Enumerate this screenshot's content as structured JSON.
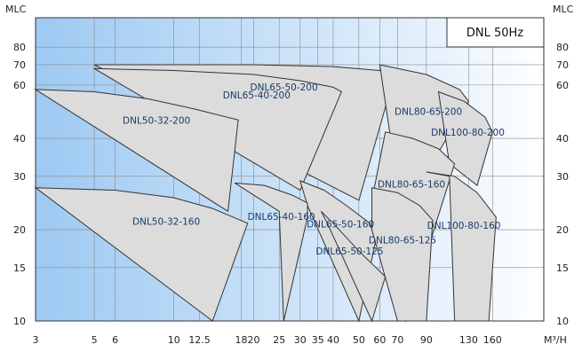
{
  "chart_data": {
    "type": "area",
    "title": "DNL 50Hz",
    "xlabel": "M³/H",
    "ylabel": "MLC",
    "x_scale": "log",
    "y_scale": "log",
    "xlim": [
      3,
      250
    ],
    "ylim": [
      10,
      100
    ],
    "x_ticks": [
      {
        "value": 3,
        "label": "3"
      },
      {
        "value": 5,
        "label": "5"
      },
      {
        "value": 6,
        "label": "6"
      },
      {
        "value": 10,
        "label": "10"
      },
      {
        "value": 12.5,
        "label": "12.5"
      },
      {
        "value": 18,
        "label": "18"
      },
      {
        "value": 20,
        "label": "20"
      },
      {
        "value": 25,
        "label": "25"
      },
      {
        "value": 30,
        "label": "30"
      },
      {
        "value": 35,
        "label": "35"
      },
      {
        "value": 40,
        "label": "40"
      },
      {
        "value": 50,
        "label": "50"
      },
      {
        "value": 60,
        "label": "60"
      },
      {
        "value": 70,
        "label": "70"
      },
      {
        "value": 90,
        "label": "90"
      },
      {
        "value": 130,
        "label": "130"
      },
      {
        "value": 160,
        "label": "160"
      }
    ],
    "x_tick_label_groups": [
      {
        "text": "1820",
        "values": [
          18,
          20
        ]
      }
    ],
    "y_ticks": [
      10,
      15,
      20,
      30,
      40,
      60,
      70,
      80
    ],
    "grid": true,
    "series": [
      {
        "name": "DNL50-32-200",
        "x": [
          3,
          5,
          8,
          12,
          17.5,
          16
        ],
        "y": [
          58,
          57,
          54,
          50,
          46,
          23
        ]
      },
      {
        "name": "DNL50-32-160",
        "x": [
          3,
          6,
          10,
          14,
          19,
          14
        ],
        "y": [
          27.5,
          27,
          25.5,
          23.5,
          21,
          10
        ]
      },
      {
        "name": "DNL65-40-200",
        "x": [
          5,
          10,
          20,
          30,
          40,
          43,
          30
        ],
        "y": [
          68,
          67,
          65,
          62,
          59,
          57,
          27
        ]
      },
      {
        "name": "DNL65-40-160",
        "x": [
          17,
          22,
          28,
          32,
          32,
          26,
          25
        ],
        "y": [
          28.5,
          28,
          26,
          24.5,
          22,
          10,
          23
        ]
      },
      {
        "name": "DNL65-50-200",
        "x": [
          5,
          10,
          20,
          40,
          60,
          68,
          50
        ],
        "y": [
          70,
          70,
          70,
          69,
          67,
          64,
          25
        ]
      },
      {
        "name": "DNL65-50-160",
        "x": [
          30,
          37,
          45,
          55,
          58,
          50,
          32
        ],
        "y": [
          29,
          27,
          24,
          21,
          18.5,
          10,
          24
        ]
      },
      {
        "name": "DNL65-50-125",
        "x": [
          36,
          40,
          50,
          63,
          56,
          38
        ],
        "y": [
          23,
          21,
          17,
          14,
          10,
          21
        ]
      },
      {
        "name": "DNL80-65-200",
        "x": [
          60,
          90,
          120,
          130,
          100,
          70
        ],
        "y": [
          70,
          65,
          58,
          53,
          36,
          28
        ]
      },
      {
        "name": "DNL80-65-160",
        "x": [
          63,
          80,
          100,
          115,
          75,
          56
        ],
        "y": [
          42,
          40,
          37,
          33,
          10,
          25
        ]
      },
      {
        "name": "DNL80-65-125",
        "x": [
          56,
          70,
          85,
          95,
          90,
          70,
          56
        ],
        "y": [
          27.5,
          26.5,
          24,
          21.5,
          10,
          10,
          20
        ]
      },
      {
        "name": "DNL100-80-200",
        "x": [
          100,
          125,
          150,
          160,
          140,
          110
        ],
        "y": [
          57,
          53,
          47,
          42,
          28,
          33
        ]
      },
      {
        "name": "DNL100-80-160",
        "x": [
          90,
          115,
          140,
          165,
          155,
          115,
          110
        ],
        "y": [
          31,
          30,
          26.5,
          22,
          10,
          10,
          30
        ]
      }
    ],
    "colors": {
      "region_fill": "#dcdcdc",
      "region_stroke": "#333333",
      "gradient_from": "#9dc9f2",
      "gradient_to": "#ffffff",
      "label": "#1a3a6b"
    }
  }
}
